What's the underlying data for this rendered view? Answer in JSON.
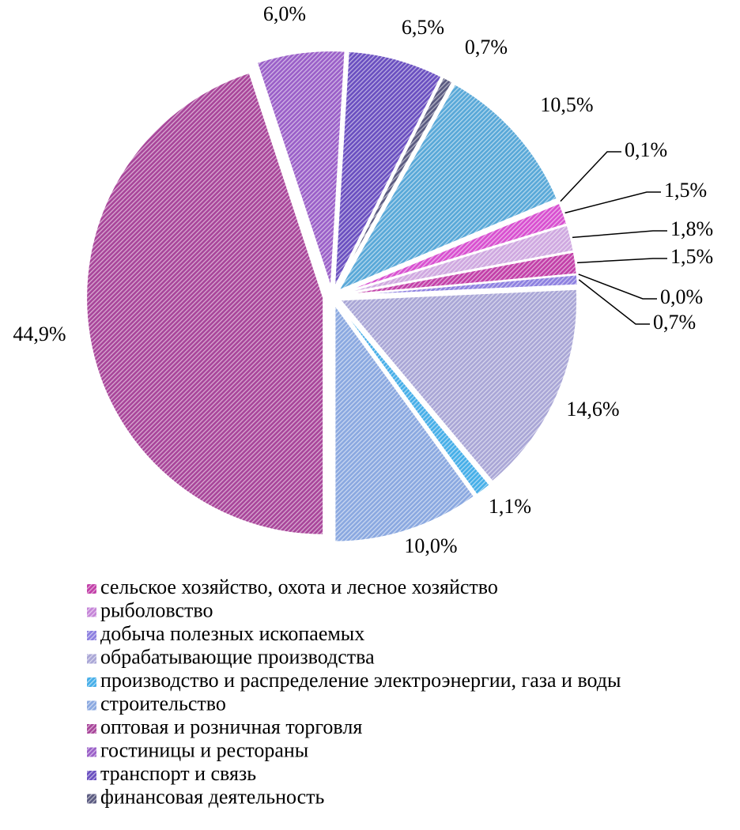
{
  "chart_data": {
    "type": "pie",
    "categories": [
      "сельское хозяйство, охота и лесное хозяйство",
      "рыболовство",
      "добыча полезных ископаемых",
      "обрабатывающие производства",
      "производство и распределение электроэнергии, газа и воды",
      "строительство",
      "оптовая и розничная торговля",
      "гостиницы и рестораны",
      "транспорт и связь",
      "финансовая деятельность",
      null,
      null,
      null,
      null
    ],
    "values": [
      1.5,
      0.0,
      0.7,
      14.6,
      1.1,
      10.0,
      44.9,
      6.0,
      6.5,
      0.7,
      10.5,
      0.1,
      1.5,
      1.8
    ],
    "value_labels": [
      "1,5%",
      "0,0%",
      "0,7%",
      "14,6%",
      "1,1%",
      "10,0%",
      "44,9%",
      "6,0%",
      "6,5%",
      "0,7%",
      "10,5%",
      "0,1%",
      "1,5%",
      "1,8%"
    ],
    "colors": [
      "#c23fa8",
      "#c584d8",
      "#8c7fe0",
      "#a9a6d6",
      "#45aee8",
      "#8aa8e0",
      "#a8459a",
      "#9a5fc8",
      "#6a4fc0",
      "#5a5a80",
      "#58a8d8",
      "#a0a0a0",
      "#d84fd0",
      "#cfa8e0"
    ]
  }
}
